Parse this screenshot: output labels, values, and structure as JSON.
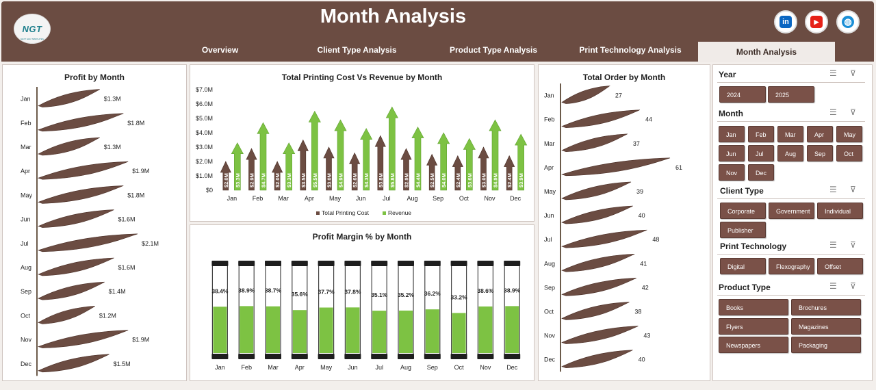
{
  "header": {
    "title": "Month Analysis",
    "logo_text": "NGT",
    "logo_subtext": "NEXT GEN TEMPLATES"
  },
  "social": {
    "linkedin": "in",
    "youtube": "▶",
    "web": "◍"
  },
  "tabs": [
    {
      "label": "Overview"
    },
    {
      "label": "Client Type Analysis"
    },
    {
      "label": "Product Type Analysis"
    },
    {
      "label": "Print Technology Analysis"
    },
    {
      "label": "Month Analysis",
      "active": true
    }
  ],
  "months": [
    "Jan",
    "Feb",
    "Mar",
    "Apr",
    "May",
    "Jun",
    "Jul",
    "Aug",
    "Sep",
    "Oct",
    "Nov",
    "Dec"
  ],
  "colors": {
    "brown": "#6b4c42",
    "green": "#7dc243",
    "green_dark": "#5fa12e"
  },
  "chart_data": [
    {
      "id": "profit",
      "type": "bar",
      "title": "Profit by Month",
      "categories": [
        "Jan",
        "Feb",
        "Mar",
        "Apr",
        "May",
        "Jun",
        "Jul",
        "Aug",
        "Sep",
        "Oct",
        "Nov",
        "Dec"
      ],
      "values": [
        1.3,
        1.8,
        1.3,
        1.9,
        1.8,
        1.6,
        2.1,
        1.6,
        1.4,
        1.2,
        1.9,
        1.5
      ],
      "labels": [
        "$1.3M",
        "$1.8M",
        "$1.3M",
        "$1.9M",
        "$1.8M",
        "$1.6M",
        "$2.1M",
        "$1.6M",
        "$1.4M",
        "$1.2M",
        "$1.9M",
        "$1.5M"
      ],
      "unit": "$M"
    },
    {
      "id": "cost_revenue",
      "type": "bar",
      "title": "Total Printing Cost Vs Revenue by Month",
      "categories": [
        "Jan",
        "Feb",
        "Mar",
        "Apr",
        "May",
        "Jun",
        "Jul",
        "Aug",
        "Sep",
        "Oct",
        "Nov",
        "Dec"
      ],
      "yticks": [
        "$0",
        "$1.0M",
        "$2.0M",
        "$3.0M",
        "$4.0M",
        "$5.0M",
        "$6.0M",
        "$7.0M"
      ],
      "ylim": [
        0,
        7
      ],
      "series": [
        {
          "name": "Total Printing Cost",
          "values": [
            2.0,
            2.9,
            2.0,
            3.5,
            3.0,
            2.6,
            3.8,
            2.9,
            2.5,
            2.4,
            3.0,
            2.4
          ],
          "labels": [
            "$2.0M",
            "$2.9M",
            "$2.0M",
            "$3.5M",
            "$3.0M",
            "$2.6M",
            "$3.8M",
            "$2.9M",
            "$2.5M",
            "$2.4M",
            "$3.0M",
            "$2.4M"
          ]
        },
        {
          "name": "Revenue",
          "values": [
            3.3,
            4.7,
            3.3,
            5.5,
            4.9,
            4.3,
            5.8,
            4.4,
            4.0,
            3.6,
            4.9,
            3.9
          ],
          "labels": [
            "$3.3M",
            "$4.7M",
            "$3.3M",
            "$5.5M",
            "$4.9M",
            "$4.3M",
            "$5.8M",
            "$4.4M",
            "$4.0M",
            "$3.6M",
            "$4.9M",
            "$3.9M"
          ]
        }
      ],
      "legend": [
        "Total Printing Cost",
        "Revenue"
      ]
    },
    {
      "id": "margin",
      "type": "bar",
      "title": "Profit Margin % by Month",
      "categories": [
        "Jan",
        "Feb",
        "Mar",
        "Apr",
        "May",
        "Jun",
        "Jul",
        "Aug",
        "Sep",
        "Oct",
        "Nov",
        "Dec"
      ],
      "values": [
        38.4,
        38.9,
        38.7,
        35.6,
        37.7,
        37.8,
        35.1,
        35.2,
        36.2,
        33.2,
        38.6,
        38.9
      ],
      "labels": [
        "38.4%",
        "38.9%",
        "38.7%",
        "35.6%",
        "37.7%",
        "37.8%",
        "35.1%",
        "35.2%",
        "36.2%",
        "33.2%",
        "38.6%",
        "38.9%"
      ],
      "ylim": [
        0,
        100
      ]
    },
    {
      "id": "orders",
      "type": "bar",
      "title": "Total Order by Month",
      "categories": [
        "Jan",
        "Feb",
        "Mar",
        "Apr",
        "May",
        "Jun",
        "Jul",
        "Aug",
        "Sep",
        "Oct",
        "Nov",
        "Dec"
      ],
      "values": [
        27,
        44,
        37,
        61,
        39,
        40,
        48,
        41,
        42,
        38,
        43,
        40
      ],
      "labels": [
        "27",
        "44",
        "37",
        "61",
        "39",
        "40",
        "48",
        "41",
        "42",
        "38",
        "43",
        "40"
      ]
    }
  ],
  "slicers": [
    {
      "title": "Year",
      "items": [
        "2024",
        "2025"
      ]
    },
    {
      "title": "Month",
      "items": [
        "Jan",
        "Feb",
        "Mar",
        "Apr",
        "May",
        "Jun",
        "Jul",
        "Aug",
        "Sep",
        "Oct",
        "Nov",
        "Dec"
      ]
    },
    {
      "title": "Client Type",
      "items": [
        "Corporate",
        "Government",
        "Individual",
        "Publisher"
      ]
    },
    {
      "title": "Print Technology",
      "items": [
        "Digital",
        "Flexography",
        "Offset"
      ]
    },
    {
      "title": "Product Type",
      "items": [
        "Books",
        "Brochures",
        "Flyers",
        "Magazines",
        "Newspapers",
        "Packaging"
      ]
    }
  ],
  "slicer_icons": {
    "multiselect": "☰",
    "clear_filter": "⊽"
  }
}
